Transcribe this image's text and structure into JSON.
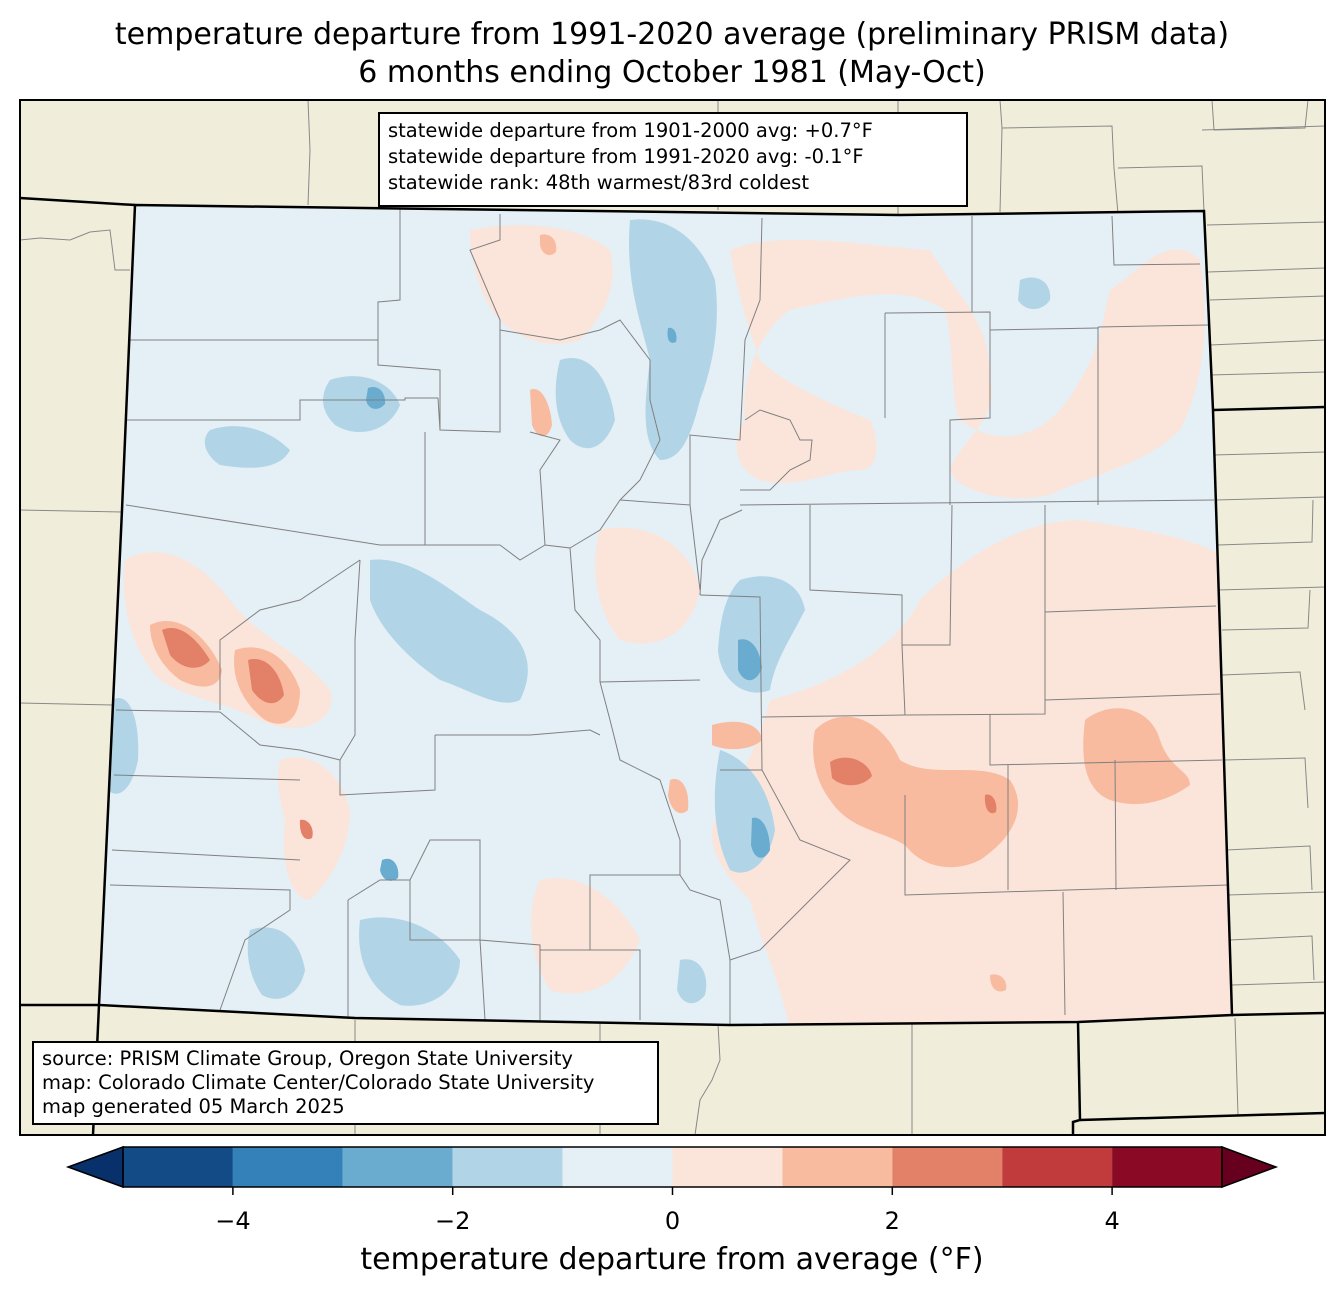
{
  "title": {
    "line1": "temperature departure from 1991-2020 average (preliminary PRISM data)",
    "line2": "6 months ending October 1981 (May-Oct)"
  },
  "stats": {
    "line1": "statewide departure from 1901-2000 avg: +0.7°F",
    "line2": "statewide departure from 1991-2020 avg: -0.1°F",
    "line3": "statewide rank: 48th warmest/83rd coldest"
  },
  "source": {
    "line1": "source: PRISM Climate Group, Oregon State University",
    "line2": "map: Colorado Climate Center/Colorado State University",
    "line3": "map generated 05 March 2025"
  },
  "colorbar": {
    "label": "temperature departure from average (°F)",
    "ticks": [
      "−4",
      "−2",
      "0",
      "2",
      "4"
    ],
    "tick_values": [
      -4,
      -2,
      0,
      2,
      4
    ],
    "range": [
      -5,
      5
    ],
    "step": 1,
    "under_color": "#08306b",
    "over_color": "#67001f",
    "colors": [
      "#134b87",
      "#3480b9",
      "#6aacd0",
      "#b1d5e7",
      "#e5eff6",
      "#fbe5da",
      "#f8bba0",
      "#e38068",
      "#c13b3d",
      "#8a0a25"
    ]
  },
  "map_colors": {
    "land_background": "#f0eedb",
    "near_zero_cool": "#e5eff6",
    "near_zero_warm": "#fbe5da",
    "cool_1": "#b1d5e7",
    "cool_2": "#6aacd0",
    "cool_3": "#3480b9",
    "warm_1": "#f8bba0",
    "warm_2": "#e38068",
    "warm_3": "#c13b3d"
  }
}
